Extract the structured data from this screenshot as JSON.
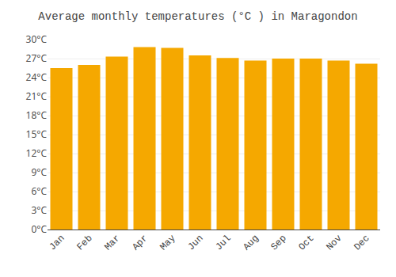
{
  "chart_data": {
    "type": "bar",
    "title": "Average monthly temperatures (°C ) in Maragondon",
    "categories": [
      "Jan",
      "Feb",
      "Mar",
      "Apr",
      "May",
      "Jun",
      "Jul",
      "Aug",
      "Sep",
      "Oct",
      "Nov",
      "Dec"
    ],
    "values": [
      25.5,
      26.0,
      27.3,
      28.8,
      28.7,
      27.5,
      27.1,
      26.7,
      27.0,
      27.0,
      26.7,
      26.2
    ],
    "color": "#F5A800",
    "ylim": [
      0,
      30
    ],
    "yticks": [
      {
        "value": 0,
        "label": "0°C"
      },
      {
        "value": 3,
        "label": "3°C"
      },
      {
        "value": 6,
        "label": "6°C"
      },
      {
        "value": 9,
        "label": "9°C"
      },
      {
        "value": 12,
        "label": "12°C"
      },
      {
        "value": 15,
        "label": "15°C"
      },
      {
        "value": 18,
        "label": "18°C"
      },
      {
        "value": 21,
        "label": "21°C"
      },
      {
        "value": 24,
        "label": "24°C"
      },
      {
        "value": 27,
        "label": "27°C"
      },
      {
        "value": 30,
        "label": "30°C"
      }
    ],
    "grid": true
  }
}
